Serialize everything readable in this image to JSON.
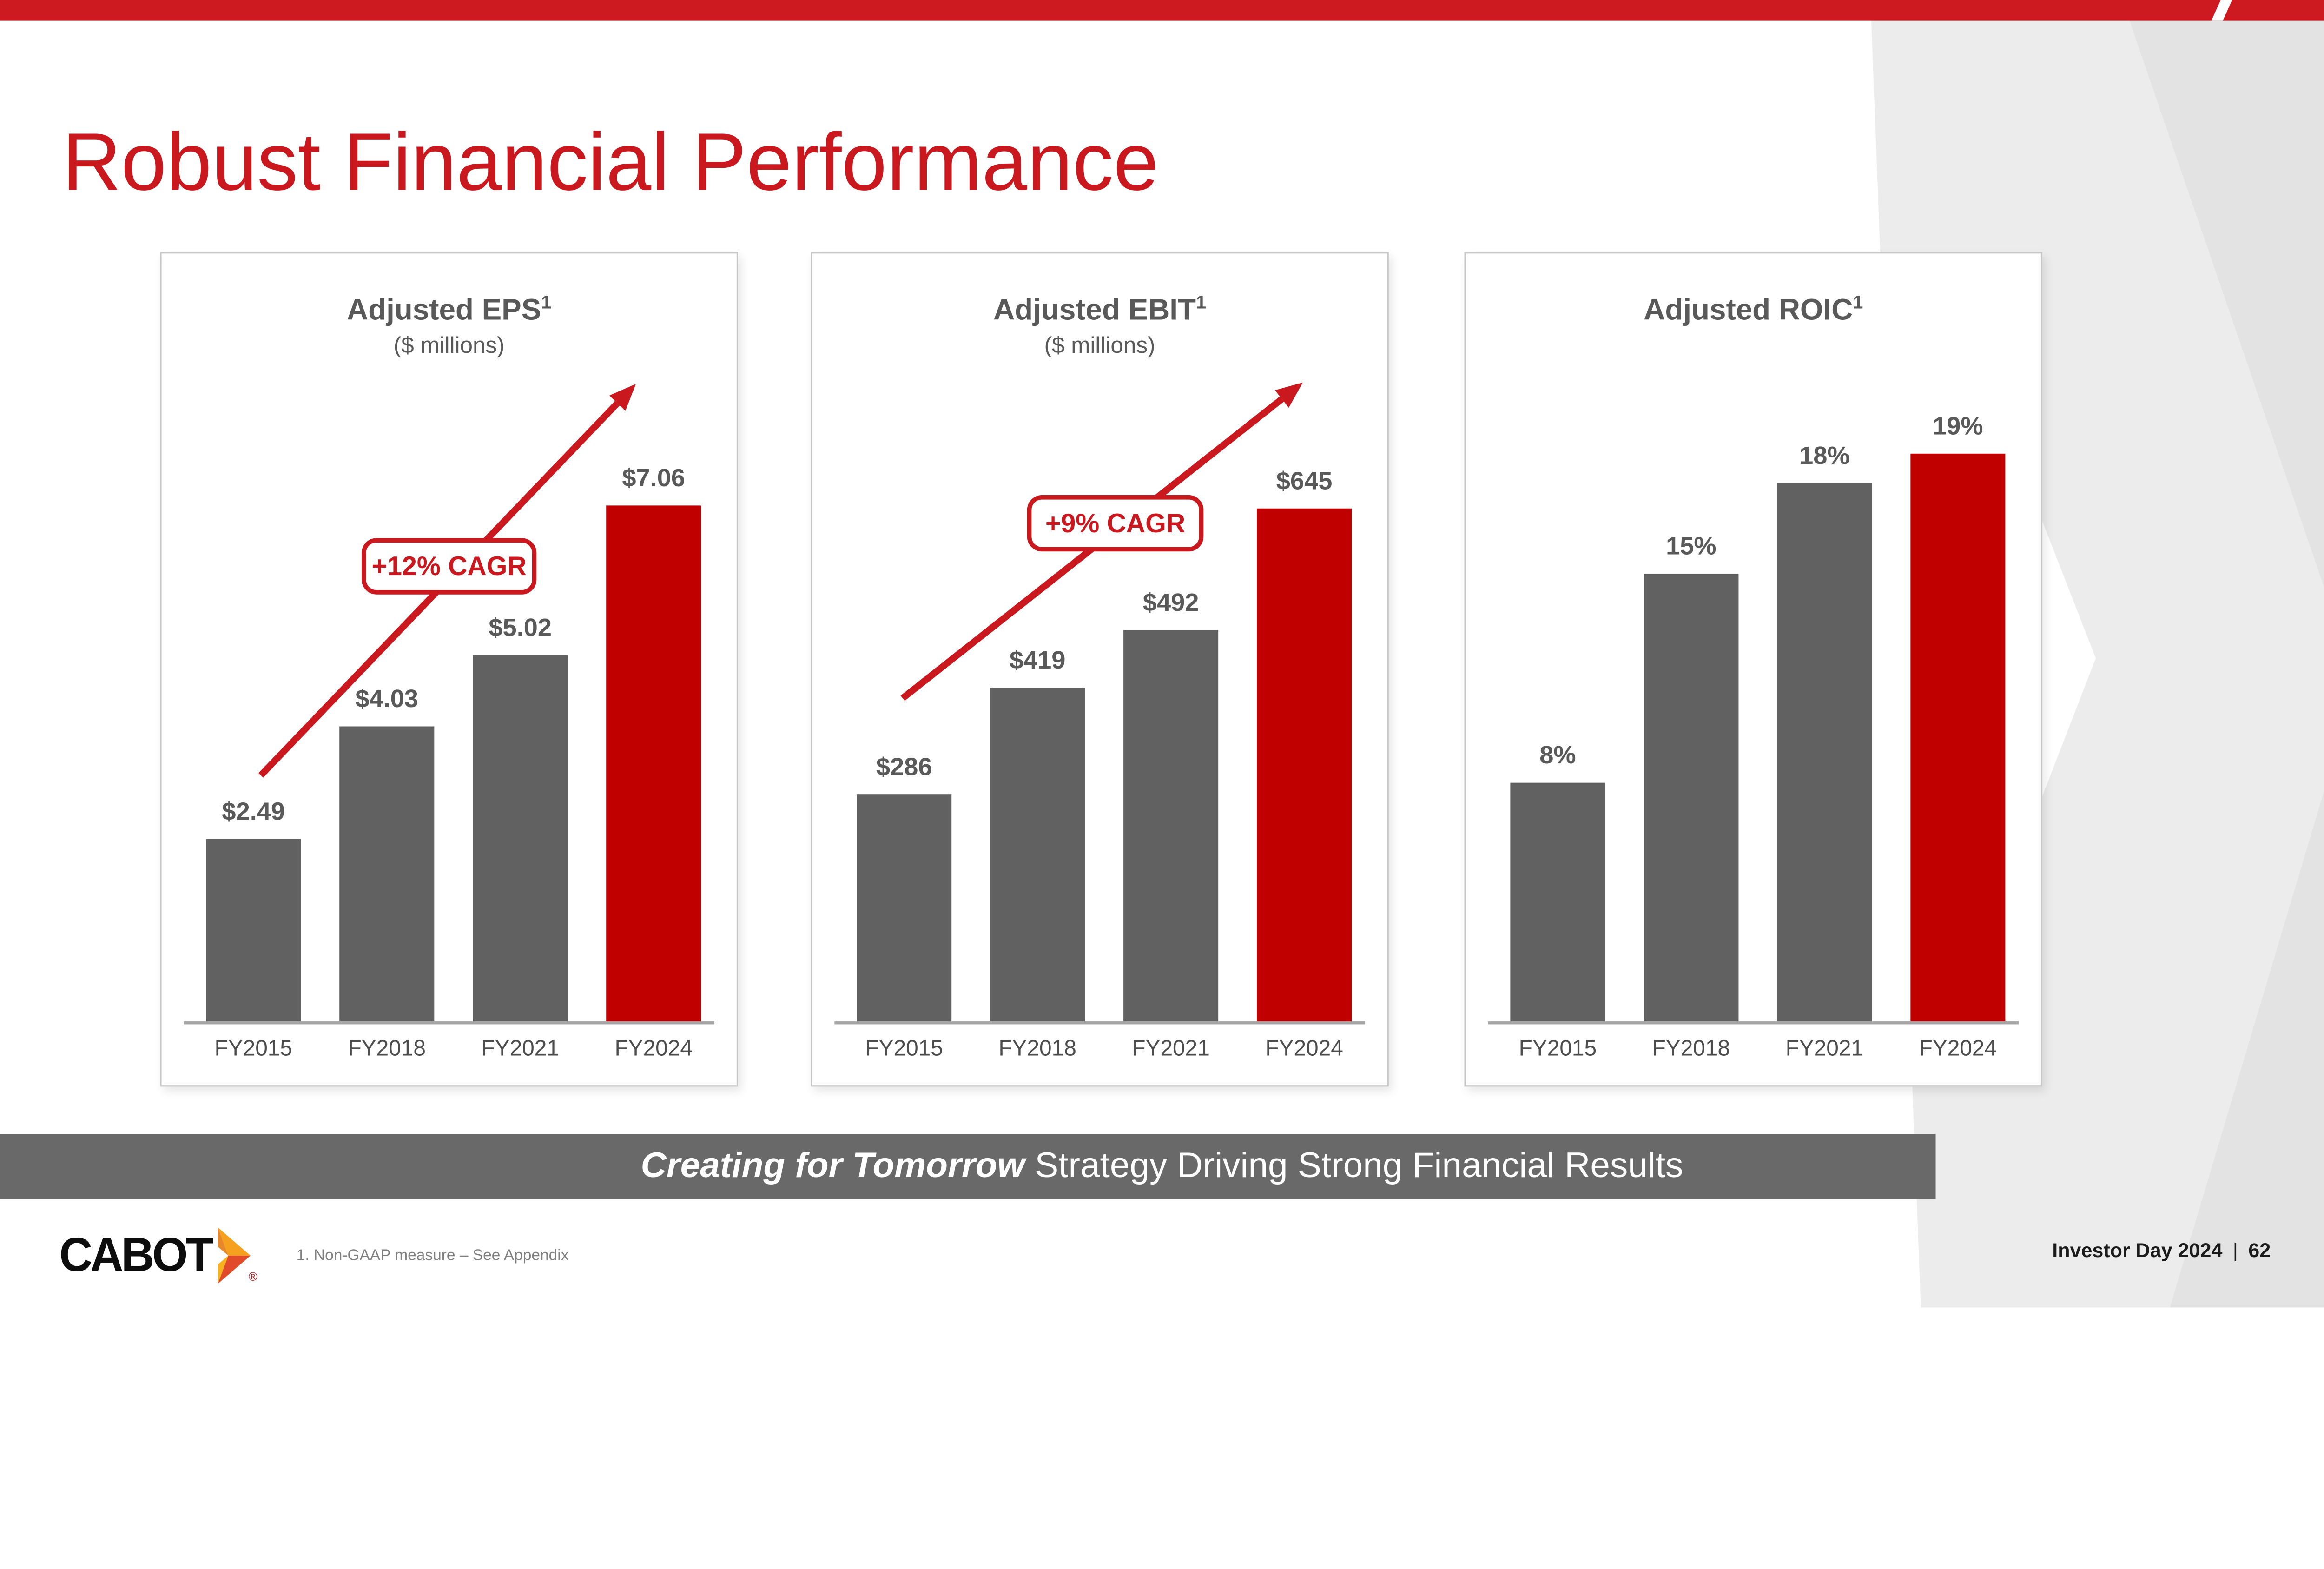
{
  "slide": {
    "title": "Robust Financial Performance",
    "banner": {
      "emphasis": "Creating for Tomorrow",
      "rest": " Strategy Driving Strong Financial Results"
    },
    "footnote": "1. Non-GAAP measure – See Appendix",
    "logo_text": "CABOT",
    "logo_reg": "®",
    "page_footer": {
      "event": "Investor Day 2024",
      "separator": "|",
      "page_number": "62"
    }
  },
  "colors": {
    "accent_red": "#c9191f",
    "bar_red": "#c00000",
    "bar_gray": "#616161",
    "banner_gray": "#696969",
    "text_gray": "#595959"
  },
  "chart_data": [
    {
      "type": "bar",
      "title": "Adjusted EPS",
      "title_sup": "1",
      "subtitle": "($ millions)",
      "categories": [
        "FY2015",
        "FY2018",
        "FY2021",
        "FY2024"
      ],
      "values": [
        2.49,
        4.03,
        5.02,
        7.06
      ],
      "labels": [
        "$2.49",
        "$4.03",
        "$5.02",
        "$7.06"
      ],
      "bar_colors": [
        "gray",
        "gray",
        "gray",
        "red"
      ],
      "ylim": [
        0,
        7.06
      ],
      "grid": false,
      "cagr_label": "+12% CAGR",
      "trend_arrow": true
    },
    {
      "type": "bar",
      "title": "Adjusted EBIT",
      "title_sup": "1",
      "subtitle": "($ millions)",
      "categories": [
        "FY2015",
        "FY2018",
        "FY2021",
        "FY2024"
      ],
      "values": [
        286,
        419,
        492,
        645
      ],
      "labels": [
        "$286",
        "$419",
        "$492",
        "$645"
      ],
      "bar_colors": [
        "gray",
        "gray",
        "gray",
        "red"
      ],
      "ylim": [
        0,
        645
      ],
      "grid": false,
      "cagr_label": "+9% CAGR",
      "trend_arrow": true
    },
    {
      "type": "bar",
      "title": "Adjusted ROIC",
      "title_sup": "1",
      "subtitle": "",
      "categories": [
        "FY2015",
        "FY2018",
        "FY2021",
        "FY2024"
      ],
      "values": [
        8,
        15,
        18,
        19
      ],
      "labels": [
        "8%",
        "15%",
        "18%",
        "19%"
      ],
      "bar_colors": [
        "gray",
        "gray",
        "gray",
        "red"
      ],
      "ylim": [
        0,
        19
      ],
      "grid": false,
      "cagr_label": "",
      "trend_arrow": false
    }
  ]
}
